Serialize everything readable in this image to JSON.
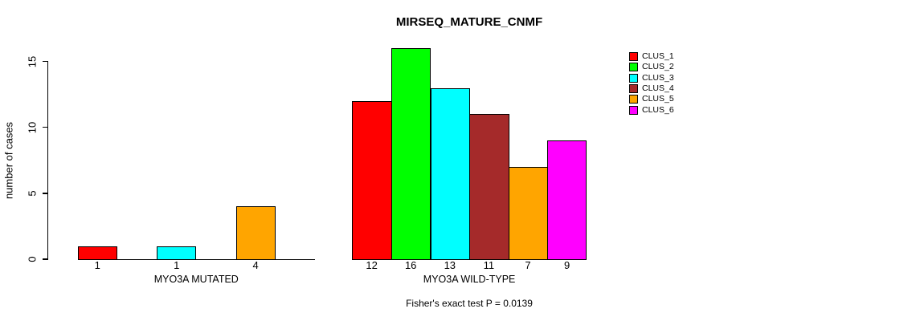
{
  "chart_data": {
    "type": "bar",
    "title": "MIRSEQ_MATURE_CNMF",
    "ylabel": "number of cases",
    "ylim": [
      0,
      15
    ],
    "yticks": [
      0,
      5,
      10,
      15
    ],
    "grid": false,
    "legend_position": "right",
    "clusters": [
      "CLUS_1",
      "CLUS_2",
      "CLUS_3",
      "CLUS_4",
      "CLUS_5",
      "CLUS_6"
    ],
    "colors": {
      "CLUS_1": "#ff0000",
      "CLUS_2": "#00ff00",
      "CLUS_3": "#00ffff",
      "CLUS_4": "#a52a2a",
      "CLUS_5": "#ffa500",
      "CLUS_6": "#ff00ff"
    },
    "groups": [
      {
        "label": "MYO3A MUTATED",
        "categories": [
          "CLUS_1",
          "CLUS_2",
          "CLUS_3",
          "CLUS_4",
          "CLUS_5",
          "CLUS_6"
        ],
        "values": [
          1,
          0,
          1,
          0,
          4,
          0
        ],
        "bar_labels": [
          "1",
          "",
          "1",
          "",
          "4",
          ""
        ]
      },
      {
        "label": "MYO3A WILD-TYPE",
        "categories": [
          "CLUS_1",
          "CLUS_2",
          "CLUS_3",
          "CLUS_4",
          "CLUS_5",
          "CLUS_6"
        ],
        "values": [
          12,
          16,
          13,
          11,
          7,
          9
        ],
        "bar_labels": [
          "12",
          "16",
          "13",
          "11",
          "7",
          "9"
        ]
      }
    ],
    "annotation": "Fisher's exact test P = 0.0139"
  },
  "legend": {
    "items": [
      {
        "label": "CLUS_1",
        "color": "#ff0000"
      },
      {
        "label": "CLUS_2",
        "color": "#00ff00"
      },
      {
        "label": "CLUS_3",
        "color": "#00ffff"
      },
      {
        "label": "CLUS_4",
        "color": "#a52a2a"
      },
      {
        "label": "CLUS_5",
        "color": "#ffa500"
      },
      {
        "label": "CLUS_6",
        "color": "#ff00ff"
      }
    ]
  }
}
